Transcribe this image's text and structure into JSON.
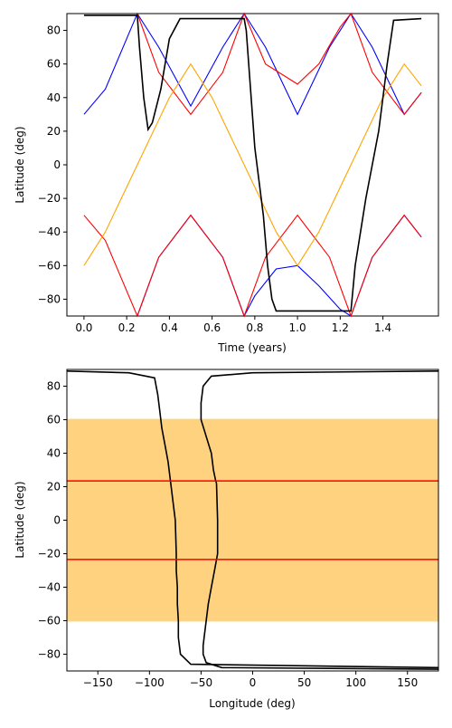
{
  "chart_data": [
    {
      "type": "line",
      "xlabel": "Time (years)",
      "ylabel": "Latitude (deg)",
      "xlim": [
        -0.08,
        1.66
      ],
      "ylim": [
        -90,
        90
      ],
      "xticks": [
        0.0,
        0.2,
        0.4,
        0.6,
        0.8,
        1.0,
        1.2,
        1.4
      ],
      "xtick_labels": [
        "0.0",
        "0.2",
        "0.4",
        "0.6",
        "0.8",
        "1.0",
        "1.2",
        "1.4"
      ],
      "yticks": [
        -80,
        -60,
        -40,
        -20,
        0,
        20,
        40,
        60,
        80
      ],
      "ytick_labels": [
        "−80",
        "−60",
        "−40",
        "−20",
        "0",
        "20",
        "40",
        "60",
        "80"
      ],
      "series": [
        {
          "color": "#0000ff",
          "x": [
            0.0,
            0.1,
            0.2,
            0.25,
            0.35,
            0.5,
            0.65,
            0.75,
            0.85,
            1.0,
            1.15,
            1.25,
            1.35,
            1.5,
            1.58
          ],
          "y": [
            30,
            45,
            75,
            90,
            70,
            35,
            70,
            90,
            70,
            30,
            70,
            90,
            70,
            30,
            43
          ]
        },
        {
          "color": "#0000ff",
          "x": [
            0.25,
            0.35,
            0.5,
            0.65,
            0.75,
            0.8,
            0.9,
            1.0,
            1.1,
            1.2,
            1.25,
            1.35,
            1.5,
            1.58
          ],
          "y": [
            -90,
            -55,
            -30,
            -55,
            -90,
            -78,
            -62,
            -60,
            -72,
            -86,
            -90,
            -55,
            -30,
            -43
          ]
        },
        {
          "color": "#ff0000",
          "x": [
            0.0,
            0.1,
            0.25,
            0.35,
            0.5,
            0.65,
            0.75,
            0.85,
            1.0,
            1.15,
            1.25,
            1.35,
            1.5,
            1.58
          ],
          "y": [
            -30,
            -45,
            -90,
            -55,
            -30,
            -55,
            -90,
            -55,
            -30,
            -55,
            -90,
            -55,
            -30,
            -43
          ]
        },
        {
          "color": "#ff0000",
          "x": [
            0.25,
            0.35,
            0.5,
            0.65,
            0.75,
            0.85,
            1.0,
            1.1,
            1.2,
            1.25,
            1.35,
            1.5,
            1.58
          ],
          "y": [
            90,
            55,
            30,
            55,
            90,
            60,
            48,
            60,
            82,
            90,
            55,
            30,
            43
          ]
        },
        {
          "color": "#ffa500",
          "x": [
            0.0,
            0.1,
            0.25,
            0.4,
            0.5,
            0.6,
            0.75,
            0.9,
            1.0,
            1.1,
            1.25,
            1.4,
            1.5,
            1.58
          ],
          "y": [
            -60,
            -40,
            0,
            40,
            60,
            40,
            0,
            -40,
            -60,
            -40,
            0,
            40,
            60,
            47
          ]
        },
        {
          "color": "#000000",
          "x": [
            0.0,
            0.25,
            0.26,
            0.28,
            0.3,
            0.32,
            0.36,
            0.4,
            0.45,
            0.5,
            0.75,
            0.76,
            0.8,
            0.84,
            0.86,
            0.88,
            0.9,
            1.0,
            1.25,
            1.27,
            1.32,
            1.38,
            1.42,
            1.45,
            1.58
          ],
          "y": [
            89,
            89,
            70,
            40,
            21,
            25,
            45,
            75,
            87,
            87,
            87,
            80,
            10,
            -30,
            -60,
            -80,
            -87,
            -87,
            -87,
            -60,
            -20,
            20,
            60,
            86,
            87
          ]
        }
      ]
    },
    {
      "type": "line",
      "xlabel": "Longitude (deg)",
      "ylabel": "Latitude (deg)",
      "xlim": [
        -180,
        180
      ],
      "ylim": [
        -90,
        90
      ],
      "xticks": [
        -150,
        -100,
        -50,
        0,
        50,
        100,
        150
      ],
      "xtick_labels": [
        "−150",
        "−100",
        "−50",
        "0",
        "50",
        "100",
        "150"
      ],
      "yticks": [
        -80,
        -60,
        -40,
        -20,
        0,
        20,
        40,
        60,
        80
      ],
      "ytick_labels": [
        "−80",
        "−60",
        "−40",
        "−20",
        "0",
        "20",
        "40",
        "60",
        "80"
      ],
      "band": {
        "y0": -60.5,
        "y1": 60.5,
        "color": "#ffd27f"
      },
      "hlines": [
        {
          "y": 23.44,
          "color": "#ff0000"
        },
        {
          "y": -23.44,
          "color": "#ff0000"
        }
      ],
      "series": [
        {
          "color": "#000000",
          "x": [
            -180,
            -120,
            -95,
            -92,
            -90,
            -88,
            -85,
            -82,
            -80,
            -77,
            -75,
            -74
          ],
          "y": [
            89,
            88,
            85,
            75,
            65,
            55,
            45,
            35,
            25,
            10,
            0,
            -20
          ]
        },
        {
          "color": "#000000",
          "x": [
            -74,
            -74,
            -73,
            -73,
            -72,
            -72,
            -70,
            -60,
            180
          ],
          "y": [
            -20,
            -30,
            -40,
            -50,
            -60,
            -70,
            -80,
            -86,
            -88
          ]
        },
        {
          "color": "#000000",
          "x": [
            180,
            0,
            -40,
            -48,
            -50,
            -50,
            -45,
            -40,
            -38,
            -36,
            -35
          ],
          "y": [
            89,
            88,
            86,
            80,
            70,
            60,
            50,
            40,
            30,
            24,
            22
          ]
        },
        {
          "color": "#000000",
          "x": [
            -35,
            -34,
            -34,
            -37,
            -40,
            -43,
            -45,
            -47,
            -48,
            -48,
            -45,
            -30,
            180
          ],
          "y": [
            22,
            0,
            -20,
            -30,
            -40,
            -50,
            -60,
            -70,
            -75,
            -80,
            -85,
            -88,
            -89
          ]
        }
      ]
    }
  ]
}
